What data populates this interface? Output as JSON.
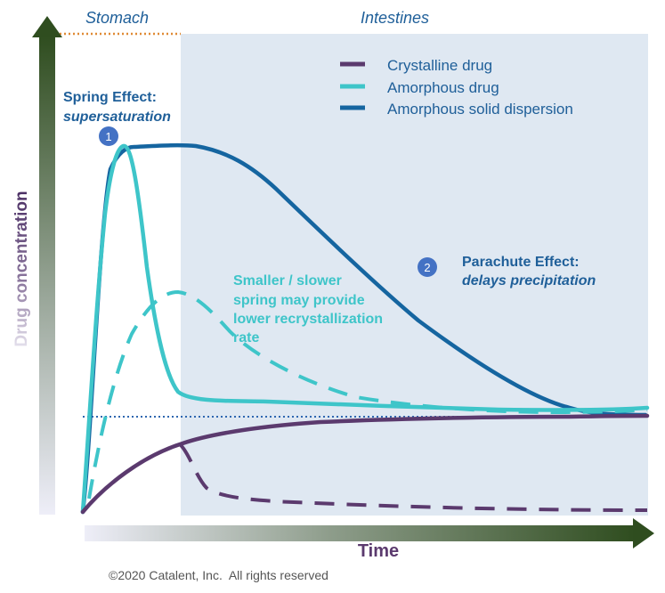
{
  "regions": {
    "stomach": "Stomach",
    "intestines": "Intestines"
  },
  "axes": {
    "y_label": "Drug concentration",
    "x_label": "Time"
  },
  "legend": {
    "crystalline": "Crystalline drug",
    "amorphous": "Amorphous drug",
    "asd": "Amorphous solid dispersion"
  },
  "annotations": {
    "spring_title": "Spring Effect:",
    "spring_sub": "supersaturation",
    "marker1": "1",
    "marker2": "2",
    "parachute_title": "Parachute Effect:",
    "parachute_sub": "delays precipitation",
    "smaller_lines": [
      "Smaller / slower",
      "spring may provide",
      "lower recrystallization",
      "rate"
    ]
  },
  "colors": {
    "crystalline": "#5b3a6e",
    "amorphous": "#3ec5c9",
    "asd": "#1565a0",
    "intestines_bg": "#dfe8f2",
    "axis_dark": "#2f4d1f",
    "label_purple": "#5b3a6e",
    "annotation_blue": "#1f5f99",
    "marker_fill": "#4472c4",
    "orange": "#e08a35",
    "dotted": "#2f67b0"
  },
  "copyright": "©2020 Catalent, Inc.  All rights reserved"
}
